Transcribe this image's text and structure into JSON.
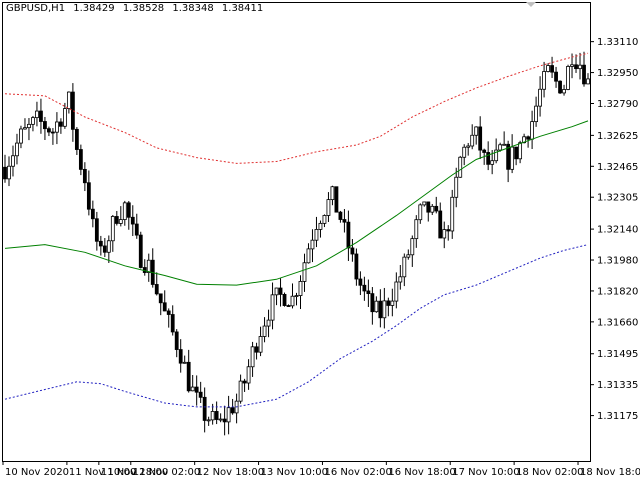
{
  "header": {
    "symbol": "GBPUSD,H1",
    "open": "1.38429",
    "high": "1.38528",
    "low": "1.38348",
    "close": "1.38411"
  },
  "colors": {
    "candle": "#000000",
    "mid_band": "#008000",
    "upper_band": "#e03030",
    "lower_band": "#2020c0",
    "axis": "#000000"
  },
  "chart_data": {
    "type": "candlestick",
    "grid": false,
    "ylim": [
      1.3094,
      1.3331
    ],
    "y_ticks": [
      "1.33110",
      "1.32950",
      "1.32790",
      "1.32625",
      "1.32465",
      "1.32305",
      "1.32140",
      "1.31980",
      "1.31820",
      "1.31660",
      "1.31495",
      "1.31335",
      "1.31175"
    ],
    "x_ticks": [
      "10 Nov 2020",
      "11 Nov 10:00",
      "11 Nov 18:00",
      "12 Nov 02:00",
      "12 Nov 18:00",
      "13 Nov 10:00",
      "16 Nov 02:00",
      "16 Nov 18:00",
      "17 Nov 10:00",
      "18 Nov 02:00",
      "18 Nov 18:00"
    ],
    "x_tick_index": [
      0,
      16,
      24,
      32,
      48,
      64,
      80,
      96,
      112,
      128,
      144
    ],
    "bars_visible": 147,
    "close_points": [
      [
        0,
        1.3246
      ],
      [
        4,
        1.3262
      ],
      [
        8,
        1.327
      ],
      [
        12,
        1.3265
      ],
      [
        16,
        1.328
      ],
      [
        18,
        1.3255
      ],
      [
        20,
        1.324
      ],
      [
        22,
        1.3215
      ],
      [
        24,
        1.32
      ],
      [
        26,
        1.321
      ],
      [
        28,
        1.3222
      ],
      [
        30,
        1.3226
      ],
      [
        32,
        1.3212
      ],
      [
        34,
        1.32
      ],
      [
        36,
        1.3195
      ],
      [
        38,
        1.3182
      ],
      [
        40,
        1.317
      ],
      [
        42,
        1.316
      ],
      [
        44,
        1.315
      ],
      [
        46,
        1.3135
      ],
      [
        48,
        1.3125
      ],
      [
        50,
        1.3118
      ],
      [
        52,
        1.3115
      ],
      [
        54,
        1.3113
      ],
      [
        56,
        1.312
      ],
      [
        58,
        1.3125
      ],
      [
        60,
        1.3135
      ],
      [
        62,
        1.315
      ],
      [
        64,
        1.3162
      ],
      [
        66,
        1.3172
      ],
      [
        68,
        1.3178
      ],
      [
        70,
        1.318
      ],
      [
        72,
        1.3178
      ],
      [
        74,
        1.319
      ],
      [
        76,
        1.3205
      ],
      [
        78,
        1.3218
      ],
      [
        80,
        1.3225
      ],
      [
        82,
        1.323
      ],
      [
        84,
        1.322
      ],
      [
        86,
        1.3205
      ],
      [
        88,
        1.319
      ],
      [
        90,
        1.318
      ],
      [
        92,
        1.3172
      ],
      [
        94,
        1.317
      ],
      [
        96,
        1.3178
      ],
      [
        98,
        1.3185
      ],
      [
        100,
        1.3195
      ],
      [
        102,
        1.3208
      ],
      [
        104,
        1.3222
      ],
      [
        106,
        1.3224
      ],
      [
        108,
        1.3218
      ],
      [
        110,
        1.321
      ],
      [
        112,
        1.3225
      ],
      [
        114,
        1.325
      ],
      [
        116,
        1.326
      ],
      [
        118,
        1.3262
      ],
      [
        120,
        1.325
      ],
      [
        122,
        1.3245
      ],
      [
        124,
        1.3255
      ],
      [
        126,
        1.325
      ],
      [
        128,
        1.3254
      ],
      [
        130,
        1.3262
      ],
      [
        132,
        1.327
      ],
      [
        134,
        1.3285
      ],
      [
        136,
        1.3295
      ],
      [
        138,
        1.329
      ],
      [
        140,
        1.3288
      ],
      [
        142,
        1.3305
      ],
      [
        144,
        1.33
      ],
      [
        146,
        1.329
      ]
    ],
    "upper_band": [
      [
        0,
        1.3284
      ],
      [
        10,
        1.3283
      ],
      [
        20,
        1.3272
      ],
      [
        30,
        1.3264
      ],
      [
        38,
        1.3256
      ],
      [
        48,
        1.3251
      ],
      [
        58,
        1.3248
      ],
      [
        68,
        1.3249
      ],
      [
        78,
        1.3254
      ],
      [
        88,
        1.32575
      ],
      [
        94,
        1.3262
      ],
      [
        102,
        1.3272
      ],
      [
        110,
        1.328
      ],
      [
        118,
        1.3287
      ],
      [
        126,
        1.3293
      ],
      [
        134,
        1.32985
      ],
      [
        142,
        1.3303
      ],
      [
        146,
        1.3305
      ]
    ],
    "middle_band": [
      [
        0,
        1.3204
      ],
      [
        10,
        1.3206
      ],
      [
        20,
        1.3202
      ],
      [
        30,
        1.3195
      ],
      [
        40,
        1.319
      ],
      [
        48,
        1.31855
      ],
      [
        58,
        1.3185
      ],
      [
        68,
        1.3188
      ],
      [
        78,
        1.3195
      ],
      [
        88,
        1.3207
      ],
      [
        98,
        1.3221
      ],
      [
        106,
        1.3233
      ],
      [
        112,
        1.3242
      ],
      [
        118,
        1.325
      ],
      [
        126,
        1.3256
      ],
      [
        134,
        1.3262
      ],
      [
        142,
        1.3267
      ],
      [
        146,
        1.327
      ]
    ],
    "lower_band": [
      [
        0,
        1.3126
      ],
      [
        10,
        1.3131
      ],
      [
        18,
        1.3135
      ],
      [
        24,
        1.3134
      ],
      [
        30,
        1.313
      ],
      [
        40,
        1.3124
      ],
      [
        48,
        1.3122
      ],
      [
        58,
        1.3122
      ],
      [
        68,
        1.3126
      ],
      [
        76,
        1.3135
      ],
      [
        84,
        1.3147
      ],
      [
        92,
        1.3156
      ],
      [
        98,
        1.3164
      ],
      [
        104,
        1.3173
      ],
      [
        110,
        1.318
      ],
      [
        118,
        1.3185
      ],
      [
        126,
        1.3192
      ],
      [
        134,
        1.3199
      ],
      [
        140,
        1.3203
      ],
      [
        146,
        1.3206
      ]
    ]
  }
}
